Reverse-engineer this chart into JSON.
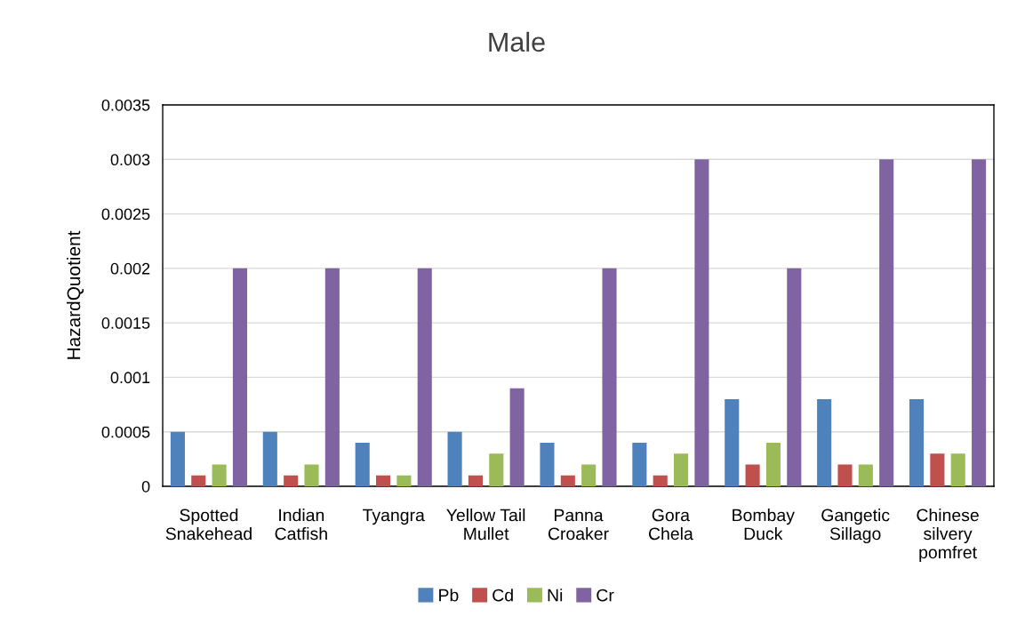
{
  "chart_data": {
    "type": "bar",
    "title": "Male",
    "ylabel": "HazardQuotient",
    "categories": [
      "Spotted\nSnakehead",
      "Indian\nCatfish",
      "Tyangra",
      "Yellow Tail\nMullet",
      "Panna\nCroaker",
      "Gora\nChela",
      "Bombay\nDuck",
      "Gangetic\nSillago",
      "Chinese\nsilvery\npomfret"
    ],
    "series": [
      {
        "name": "Pb",
        "color": "#4f81bd",
        "values": [
          0.0005,
          0.0005,
          0.0004,
          0.0005,
          0.0004,
          0.0004,
          0.0008,
          0.0008,
          0.0008
        ]
      },
      {
        "name": "Cd",
        "color": "#c0504d",
        "values": [
          0.0001,
          0.0001,
          0.0001,
          0.0001,
          0.0001,
          0.0001,
          0.0002,
          0.0002,
          0.0003
        ]
      },
      {
        "name": "Ni",
        "color": "#9bbb59",
        "values": [
          0.0002,
          0.0002,
          0.0001,
          0.0003,
          0.0002,
          0.0003,
          0.0004,
          0.0002,
          0.0003
        ]
      },
      {
        "name": "Cr",
        "color": "#8064a2",
        "values": [
          0.002,
          0.002,
          0.002,
          0.0009,
          0.002,
          0.003,
          0.002,
          0.003,
          0.003
        ]
      }
    ],
    "ylim": [
      0,
      0.0035
    ],
    "yticks": [
      0,
      0.0005,
      0.001,
      0.0015,
      0.002,
      0.0025,
      0.003,
      0.0035
    ],
    "grid": "y",
    "legend": "bottom"
  }
}
